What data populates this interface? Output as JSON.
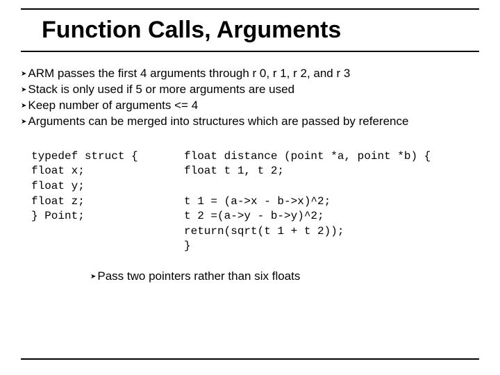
{
  "title": "Function Calls, Arguments",
  "bullets": [
    "ARM passes the first 4 arguments through r 0, r 1, r 2, and r 3",
    "Stack is only used if 5 or more arguments are used",
    "Keep number of arguments <= 4",
    "Arguments can be merged into structures which are passed by reference"
  ],
  "code_left": "typedef struct {\nfloat x;\nfloat y;\nfloat z;\n} Point;",
  "code_right": "float distance (point *a, point *b) {\nfloat t 1, t 2;\n\nt 1 = (a->x - b->x)^2;\nt 2 =(a->y - b->y)^2;\nreturn(sqrt(t 1 + t 2));\n}",
  "footer": "Pass two pointers rather than six floats",
  "arrow_glyph": "➤",
  "colors": {
    "text": "#000000",
    "background": "#ffffff",
    "rule": "#000000"
  }
}
